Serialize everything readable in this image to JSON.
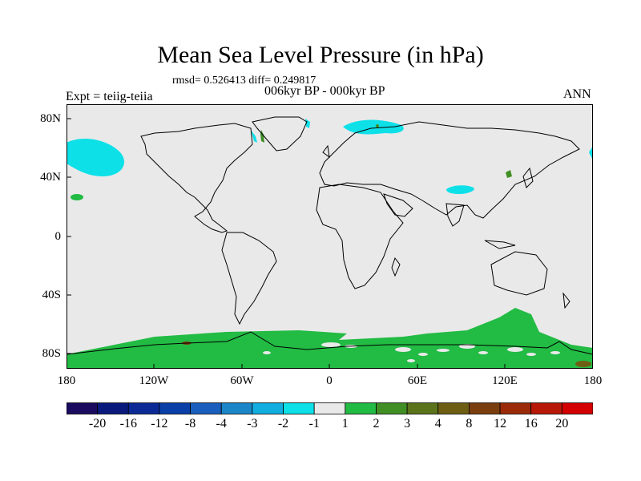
{
  "title": "Mean Sea Level Pressure (in hPa)",
  "stats": "rmsd= 0.526413  diff= 0.249817",
  "experiment": "Expt = teiig-teiia",
  "period": "006kyr BP - 000kyr BP",
  "season": "ANN",
  "lat_labels": [
    "80N",
    "40N",
    "0",
    "40S",
    "80S"
  ],
  "lon_labels": [
    "180",
    "120W",
    "60W",
    "0",
    "60E",
    "120E",
    "180"
  ],
  "colorbar": {
    "labels": [
      "-20",
      "-16",
      "-12",
      "-8",
      "-4",
      "-3",
      "-2",
      "-1",
      "1",
      "2",
      "3",
      "4",
      "8",
      "12",
      "16",
      "20"
    ],
    "colors": [
      "#1a0b5e",
      "#0a1a7c",
      "#0b2a96",
      "#0a3fa8",
      "#1a5fbe",
      "#1a86c8",
      "#12aee0",
      "#0ee0e8",
      "#e9e9e9",
      "#22bb44",
      "#3f8f24",
      "#5b741c",
      "#6e5e14",
      "#7a3e0e",
      "#9a2a08",
      "#b81808",
      "#d40000"
    ]
  },
  "colors": {
    "background": "#e9e9e9",
    "negative_anomaly": "#0ee0e8",
    "positive_anomaly": "#22bb44",
    "strong_positive": "#3f8f24",
    "higher_positive": "#6e5e14",
    "highest_positive": "#7a3e0e"
  }
}
